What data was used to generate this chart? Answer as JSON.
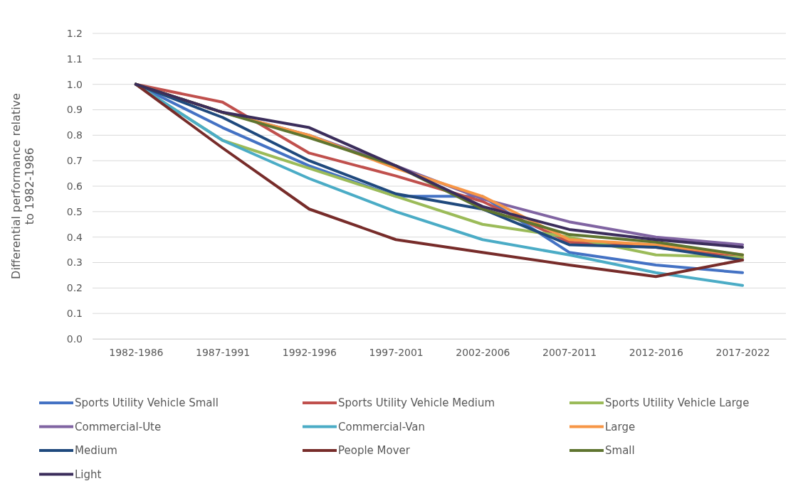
{
  "chart_data": {
    "type": "line",
    "ylabel": "Differential performance relative to 1982-1986",
    "categories": [
      "1982-1986",
      "1987-1991",
      "1992-1996",
      "1997-2001",
      "2002-2006",
      "2007-2011",
      "2012-2016",
      "2017-2022"
    ],
    "ylim": [
      0,
      1.2
    ],
    "yticks": [
      {
        "value": 0,
        "label": "0.0"
      },
      {
        "value": 0.1,
        "label": "0.1"
      },
      {
        "value": 0.2,
        "label": "0.2"
      },
      {
        "value": 0.3,
        "label": "0.3"
      },
      {
        "value": 0.4,
        "label": "0.4"
      },
      {
        "value": 0.5,
        "label": "0.5"
      },
      {
        "value": 0.6,
        "label": "0.6"
      },
      {
        "value": 0.7,
        "label": "0.7"
      },
      {
        "value": 0.8,
        "label": "0.8"
      },
      {
        "value": 0.9,
        "label": "0.9"
      },
      {
        "value": 1,
        "label": "1.0"
      },
      {
        "value": 1.1,
        "label": "1.1"
      },
      {
        "value": 1.2,
        "label": "1.2"
      }
    ],
    "grid": "y",
    "legend": "bottom",
    "marker": "none",
    "line_style": "solid",
    "series": [
      {
        "name": "Sports Utility Vehicle Small",
        "color": "#4472c4",
        "values": [
          1.0,
          0.83,
          0.68,
          0.56,
          0.56,
          0.34,
          0.29,
          0.26
        ]
      },
      {
        "name": "Sports Utility Vehicle Medium",
        "color": "#c0504d",
        "values": [
          1.0,
          0.93,
          0.73,
          0.64,
          0.54,
          0.38,
          0.36,
          0.32
        ]
      },
      {
        "name": "Sports Utility Vehicle Large",
        "color": "#9bbb59",
        "values": [
          1.0,
          0.78,
          0.67,
          0.56,
          0.45,
          0.4,
          0.33,
          0.32
        ]
      },
      {
        "name": "Commercial-Ute",
        "color": "#8064a2",
        "values": [
          1.0,
          0.89,
          0.8,
          0.68,
          0.55,
          0.46,
          0.4,
          0.37
        ]
      },
      {
        "name": "Commercial-Van",
        "color": "#4bacc6",
        "values": [
          1.0,
          0.78,
          0.63,
          0.5,
          0.39,
          0.33,
          0.26,
          0.21
        ]
      },
      {
        "name": "Large",
        "color": "#f79646",
        "values": [
          1.0,
          0.89,
          0.8,
          0.67,
          0.56,
          0.39,
          0.37,
          0.33
        ]
      },
      {
        "name": "Medium",
        "color": "#1f497d",
        "values": [
          1.0,
          0.87,
          0.7,
          0.57,
          0.51,
          0.37,
          0.36,
          0.31
        ]
      },
      {
        "name": "People Mover",
        "color": "#772c2a",
        "values": [
          1.0,
          0.75,
          0.51,
          0.39,
          0.34,
          0.29,
          0.245,
          0.31
        ]
      },
      {
        "name": "Small",
        "color": "#5f7530",
        "values": [
          1.0,
          0.89,
          0.79,
          0.68,
          0.51,
          0.41,
          0.38,
          0.33
        ]
      },
      {
        "name": "Light",
        "color": "#3b2d5b",
        "values": [
          1.0,
          0.89,
          0.83,
          0.68,
          0.52,
          0.43,
          0.39,
          0.36
        ]
      }
    ]
  }
}
